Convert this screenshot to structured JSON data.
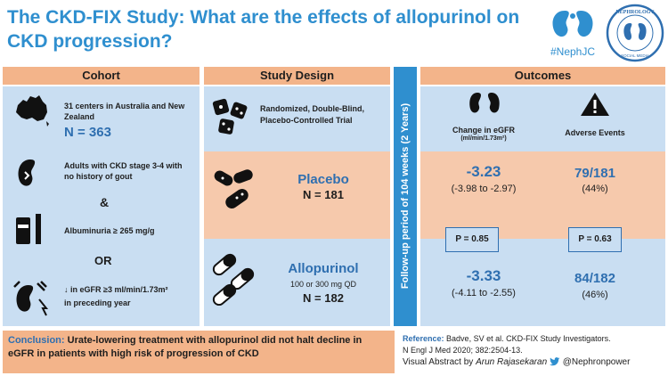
{
  "title": "The CKD-FIX Study: What are the effects of allopurinol on CKD progression?",
  "logos": {
    "nephjc_label": "#NephJC",
    "seal_label": "NEPHROLOGY SOCIAL MEDIA COLLECTIVE"
  },
  "cohort": {
    "header": "Cohort",
    "centers": "31 centers in Australia and New Zealand",
    "n": "N = 363",
    "criteria_1": "Adults with CKD stage 3-4 with no history of gout",
    "ampersand": "&",
    "criteria_2": "Albuminuria ≥ 265 mg/g",
    "or": "OR",
    "criteria_3a": "↓ in eGFR ≥3 ml/min/1.73m²",
    "criteria_3b": "in preceding year"
  },
  "design": {
    "header": "Study Design",
    "type": "Randomized, Double-Blind, Placebo-Controlled Trial",
    "placebo_label": "Placebo",
    "placebo_n": "N = 181",
    "allo_label": "Allopurinol",
    "allo_dose": "100 or 300 mg QD",
    "allo_n": "N = 182"
  },
  "follow_up": "Follow-up period of 104 weeks (2 Years)",
  "outcomes": {
    "header": "Outcomes",
    "col1_title": "Change in eGFR",
    "col1_unit": "(ml/min/1.73m²)",
    "col2_title": "Adverse Events",
    "placebo_egfr": "-3.23",
    "placebo_ci": "(-3.98 to -2.97)",
    "placebo_ae": "79/181",
    "placebo_ae_pct": "(44%)",
    "p1": "P = 0.85",
    "p2": "P = 0.63",
    "allo_egfr": "-3.33",
    "allo_ci": "(-4.11 to -2.55)",
    "allo_ae": "84/182",
    "allo_ae_pct": "(46%)"
  },
  "conclusion": {
    "lead": "Conclusion:",
    "text": "Urate-lowering treatment with allopurinol did not halt decline in eGFR in patients with high risk of progression of CKD"
  },
  "reference": {
    "label": "Reference:",
    "line1": "Badve, SV et al. CKD-FIX Study Investigators.",
    "line2": "N Engl J Med 2020; 382:2504-13.",
    "va_prefix": "Visual Abstract by",
    "author": "Arun Rajasekaran",
    "handle": "@Nephronpower"
  },
  "colors": {
    "blue": "#2f8fcf",
    "dark_blue": "#2f6fb0",
    "orange_header": "#f3b48a",
    "light_blue": "#c9def2",
    "light_orange": "#f6c9ac"
  }
}
